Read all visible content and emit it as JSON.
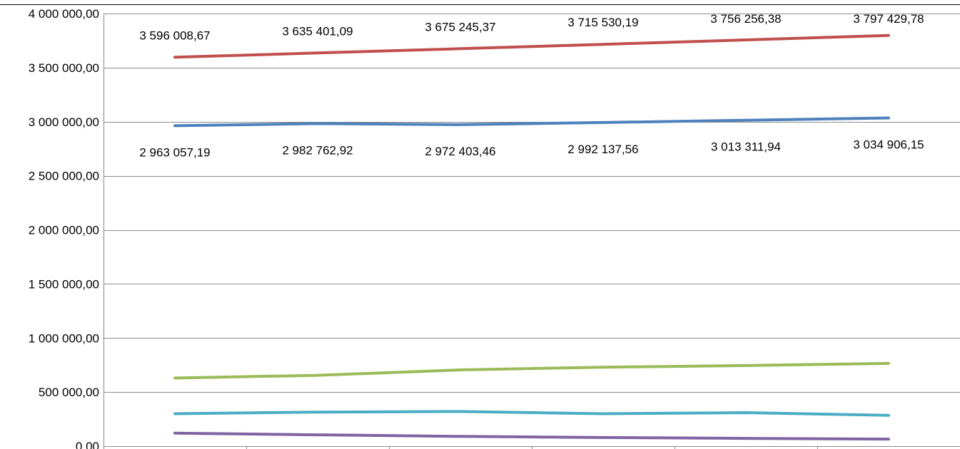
{
  "chart_data": {
    "type": "line",
    "x": [
      1,
      2,
      3,
      4,
      5,
      6
    ],
    "ylim": [
      0,
      4000000
    ],
    "yticks": [
      0,
      500000,
      1000000,
      1500000,
      2000000,
      2500000,
      3000000,
      3500000,
      4000000
    ],
    "ytick_labels": [
      "0,00",
      "500 000,00",
      "1 000 000,00",
      "1 500 000,00",
      "2 000 000,00",
      "2 500 000,00",
      "3 000 000,00",
      "3 500 000,00",
      "4 000 000,00"
    ],
    "grid": true,
    "legend": "none",
    "series": [
      {
        "color": "#c0504d",
        "values": [
          3596008.67,
          3635401.09,
          3675245.37,
          3715530.19,
          3756256.38,
          3797429.78
        ],
        "labels": [
          "3 596 008,67",
          "3 635 401,09",
          "3 675 245,37",
          "3 715 530,19",
          "3 756 256,38",
          "3 797 429,78"
        ]
      },
      {
        "color": "#4f81bd",
        "values": [
          2963057.19,
          2982762.92,
          2972403.46,
          2992137.56,
          3013311.94,
          3034906.15
        ],
        "labels": [
          "2 963 057,19",
          "2 982 762,92",
          "2 972 403,46",
          "2 992 137,56",
          "3 013 311,94",
          "3 034 906,15"
        ]
      },
      {
        "color": "#9bbb59",
        "values": [
          630000,
          655000,
          705000,
          730000,
          745000,
          765000
        ],
        "labels": []
      },
      {
        "color": "#4bacc6",
        "values": [
          300000,
          315000,
          320000,
          300000,
          310000,
          285000
        ],
        "labels": []
      },
      {
        "color": "#8064a2",
        "values": [
          120000,
          105000,
          90000,
          80000,
          72000,
          65000
        ],
        "labels": []
      }
    ]
  }
}
